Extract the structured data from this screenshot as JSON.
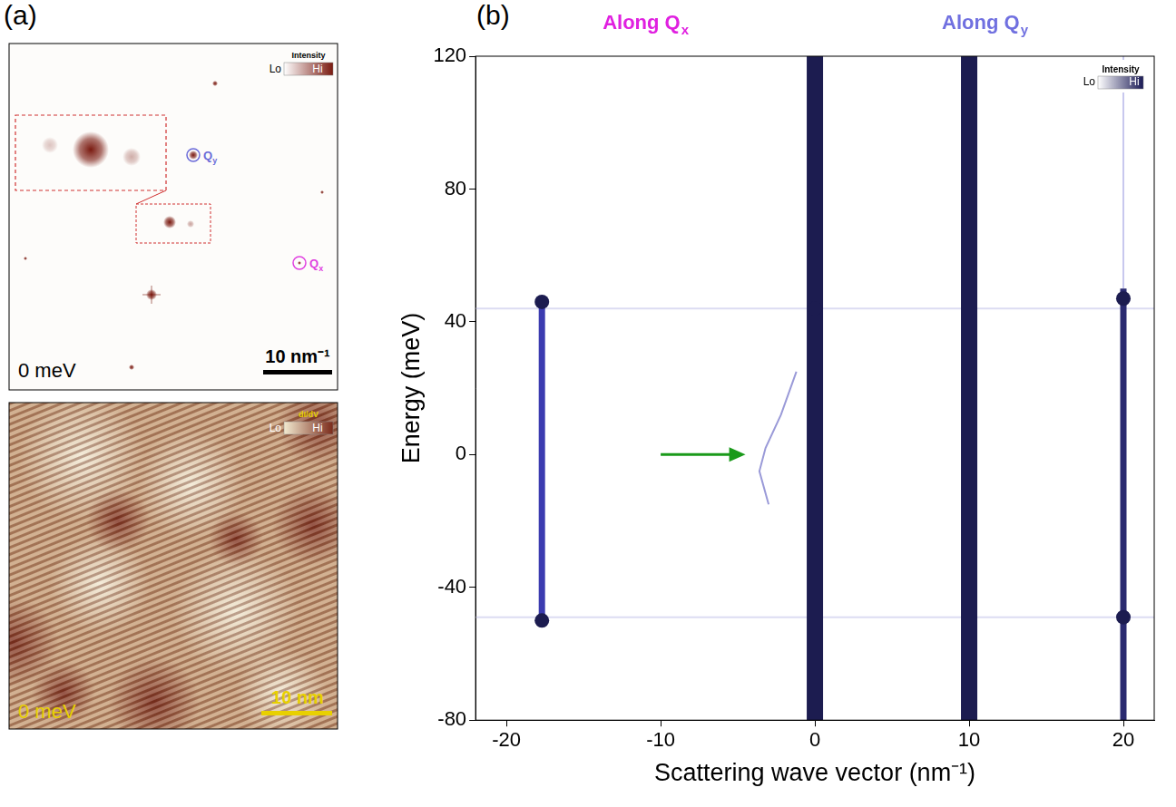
{
  "figure": {
    "panel_labels": [
      "(a)",
      "(b)"
    ],
    "panel_a": {
      "fft": {
        "label": "0 meV",
        "scale_bar": "10 nm⁻¹",
        "colorbar": {
          "title": "Intensity",
          "low": "Lo",
          "high": "Hi",
          "colors": [
            "#ffffff",
            "#7a1a10"
          ]
        },
        "peaks": [
          {
            "text": "Q",
            "sub": "y",
            "color": "#6b6bd8"
          },
          {
            "text": "Q",
            "sub": "x",
            "color": "#e040e0"
          }
        ]
      },
      "map": {
        "label": "0 meV",
        "scale_bar": "10 nm",
        "colorbar": {
          "title": "dI/dV",
          "low": "Lo",
          "high": "Hi",
          "colors": [
            "#f2ead0",
            "#7a2a1a"
          ]
        }
      }
    }
  },
  "chart_data": {
    "type": "scatter",
    "x_label": "Scattering wave vector (nm⁻¹)",
    "y_label": "Energy (meV)",
    "xlim": [
      -22,
      22
    ],
    "xticks": [
      -20,
      -10,
      0,
      10,
      20
    ],
    "ylim": [
      -80,
      120
    ],
    "yticks": [
      -80,
      -40,
      0,
      40,
      80,
      120
    ],
    "grid": false,
    "annotations": [
      {
        "text": "Along Q",
        "sub": "x",
        "color": "#e020e0"
      },
      {
        "text": "Along Q",
        "sub": "y",
        "color": "#7070e0"
      },
      {
        "type": "arrow",
        "x": [
          -10,
          -4.5
        ],
        "y": [
          0,
          0
        ],
        "color": "#1a9a1a"
      }
    ],
    "colorbar": {
      "title": "Intensity",
      "low": "Lo",
      "high": "Hi",
      "colors": [
        "#ffffff",
        "#1a1a55"
      ]
    },
    "series": [
      {
        "x": [
          -22,
          22
        ],
        "values": [
          44,
          44
        ],
        "color": "#dcdcf2",
        "line_style": "thin"
      },
      {
        "x": [
          -22,
          22
        ],
        "values": [
          -49,
          -49
        ],
        "color": "#dcdcf2",
        "line_style": "thin"
      },
      {
        "x": [
          -1.2,
          -2.2,
          -3.2,
          -3.6,
          -3.0
        ],
        "values": [
          25,
          12,
          2,
          -5,
          -15
        ],
        "color": "#9a9ad8",
        "line_style": "thin"
      },
      {
        "x": [
          20,
          20
        ],
        "values": [
          50,
          120
        ],
        "color": "#c8c8ee",
        "line_style": "thin"
      },
      {
        "x": [
          -17.7,
          -17.7
        ],
        "values": [
          -50,
          46
        ],
        "color": "#3b3bb0",
        "line_style": "medium"
      },
      {
        "x": [
          20,
          20
        ],
        "values": [
          -80,
          50
        ],
        "color": "#2a2a70",
        "line_style": "medium"
      },
      {
        "x": [
          0,
          0
        ],
        "values": [
          -80,
          120
        ],
        "color": "#1c1c50",
        "line_style": "thick"
      },
      {
        "x": [
          10,
          10
        ],
        "values": [
          -80,
          120
        ],
        "color": "#1c1c50",
        "line_style": "thick"
      },
      {
        "type": "scatter",
        "marker": "circle",
        "x": [
          -17.7,
          -17.7,
          0,
          20,
          20
        ],
        "values": [
          46,
          -50,
          44,
          47,
          -49
        ],
        "color": "#1c1c50"
      }
    ]
  }
}
